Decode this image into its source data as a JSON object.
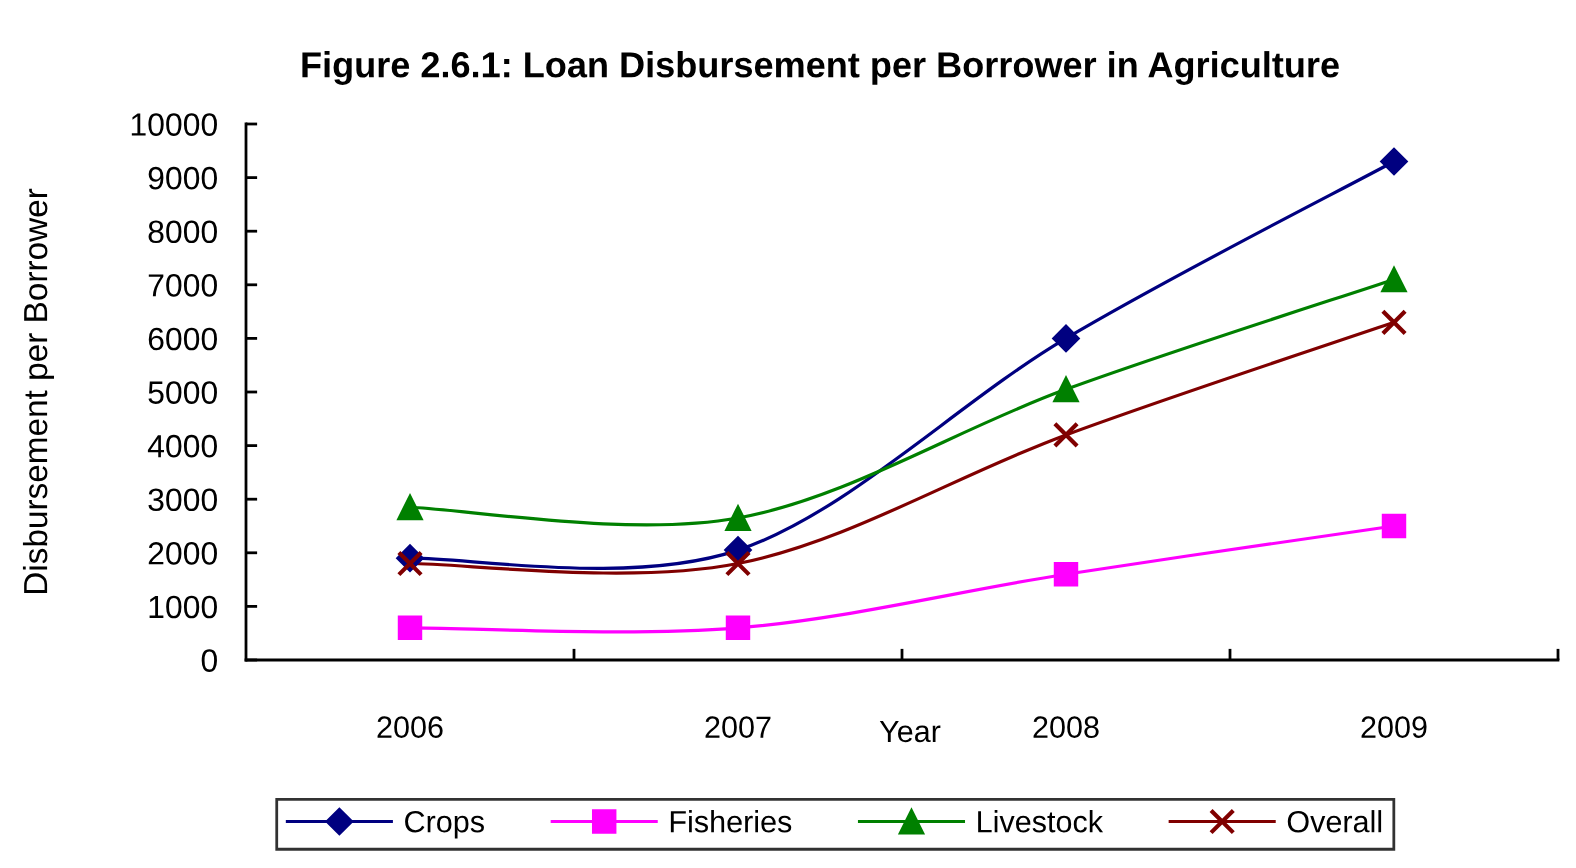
{
  "chart_data": {
    "type": "line",
    "title": "Figure 2.6.1: Loan Disbursement per Borrower in Agriculture",
    "xlabel": "Year",
    "ylabel": "Disbursement per Borrower",
    "categories": [
      "2006",
      "2007",
      "2008",
      "2009"
    ],
    "series": [
      {
        "name": "Crops",
        "color": "#000080",
        "marker": "diamond",
        "values": [
          1900,
          2050,
          6000,
          9300
        ]
      },
      {
        "name": "Fisheries",
        "color": "#ff00ff",
        "marker": "square",
        "values": [
          600,
          600,
          1600,
          2500
        ]
      },
      {
        "name": "Livestock",
        "color": "#008000",
        "marker": "triangle",
        "values": [
          2850,
          2650,
          5050,
          7100
        ]
      },
      {
        "name": "Overall",
        "color": "#800000",
        "marker": "cross",
        "values": [
          1800,
          1800,
          4200,
          6300
        ]
      }
    ],
    "ylim": [
      0,
      10000
    ],
    "yticks": [
      0,
      1000,
      2000,
      3000,
      4000,
      5000,
      6000,
      7000,
      8000,
      9000,
      10000
    ],
    "legend": "bottom",
    "line_style": "solid"
  }
}
